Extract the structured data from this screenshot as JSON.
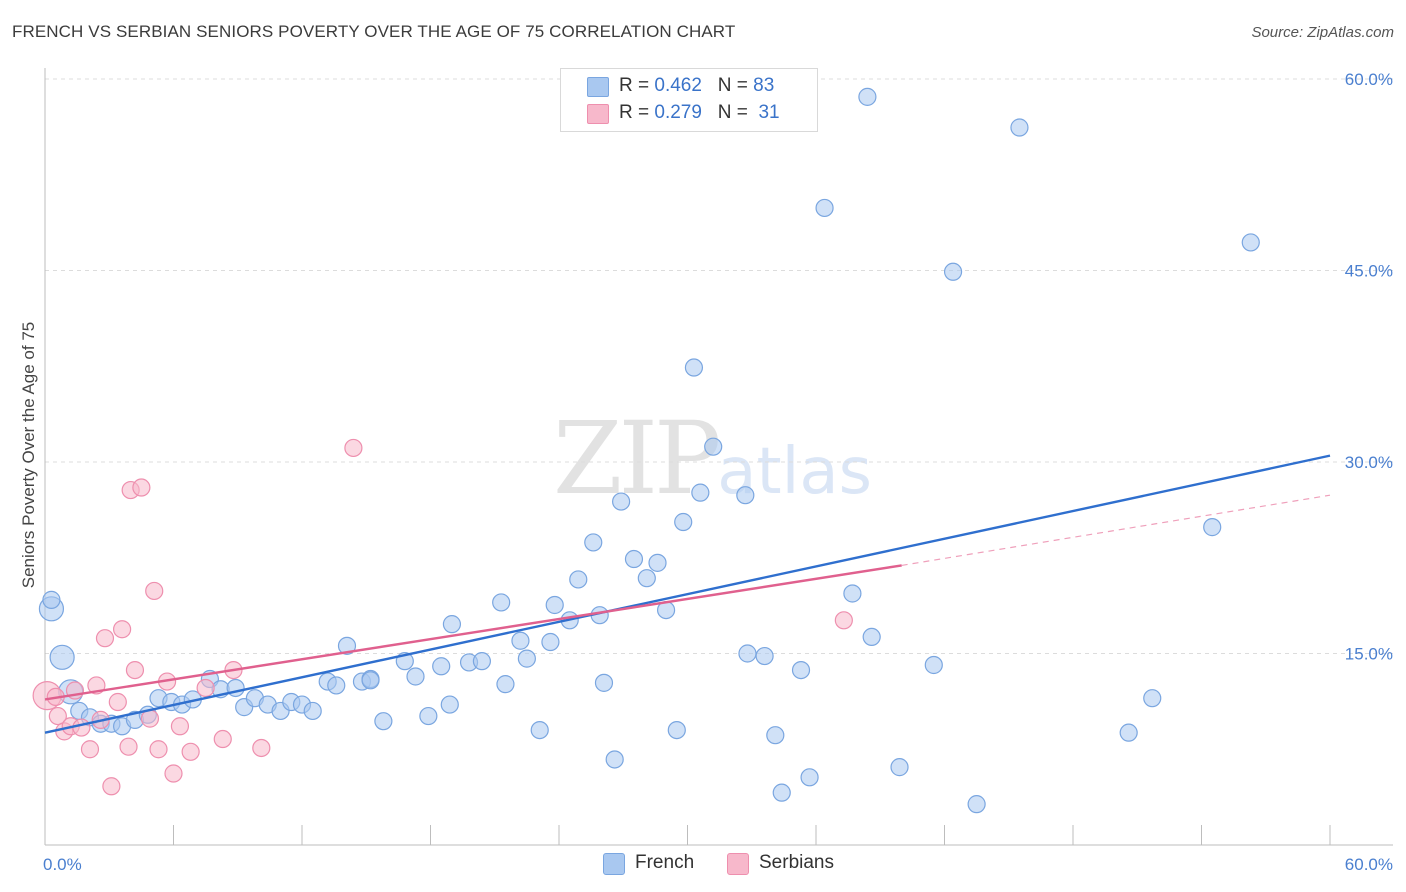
{
  "header": {
    "title": "FRENCH VS SERBIAN SENIORS POVERTY OVER THE AGE OF 75 CORRELATION CHART",
    "source": "Source: ZipAtlas.com"
  },
  "watermark": {
    "zip": "ZIP",
    "atlas": "atlas"
  },
  "legend": {
    "rows": [
      {
        "r_label": "R =",
        "r_value": "0.462",
        "n_label": "N =",
        "n_value": "83",
        "color": "#a9c8f0"
      },
      {
        "r_label": "R =",
        "r_value": "0.279",
        "n_label": "N =",
        "n_value": "31",
        "color": "#f7b8cb"
      }
    ]
  },
  "bottom_legend": [
    {
      "label": "French",
      "color": "#a9c8f0"
    },
    {
      "label": "Serbians",
      "color": "#f7b8cb"
    }
  ],
  "chart_data": {
    "type": "scatter",
    "title": "FRENCH VS SERBIAN SENIORS POVERTY OVER THE AGE OF 75 CORRELATION CHART",
    "xlabel": "",
    "ylabel": "Seniors Poverty Over the Age of 75",
    "xlim": [
      0,
      60
    ],
    "ylim": [
      0,
      60
    ],
    "x_tick_labels": [
      "0.0%",
      "60.0%"
    ],
    "y_ticks": [
      15,
      30,
      45,
      60
    ],
    "y_tick_labels": [
      "15.0%",
      "30.0%",
      "45.0%",
      "60.0%"
    ],
    "grid": "horizontal-dashed",
    "legend_position": "top-center",
    "series": [
      {
        "name": "French",
        "color": "#a9c8f0",
        "stroke": "#7aa6e0",
        "trend": {
          "x": [
            0,
            60
          ],
          "y": [
            8.8,
            30.5
          ],
          "color": "#2f6fce"
        },
        "points": [
          [
            0.3,
            18.5
          ],
          [
            0.8,
            14.7
          ],
          [
            1.2,
            12.0
          ],
          [
            1.6,
            10.5
          ],
          [
            2.1,
            10.0
          ],
          [
            2.6,
            9.5
          ],
          [
            3.1,
            9.5
          ],
          [
            3.6,
            9.3
          ],
          [
            4.2,
            9.8
          ],
          [
            4.8,
            10.2
          ],
          [
            5.3,
            11.5
          ],
          [
            5.9,
            11.2
          ],
          [
            6.4,
            11.0
          ],
          [
            6.9,
            11.4
          ],
          [
            7.7,
            13.0
          ],
          [
            8.2,
            12.2
          ],
          [
            8.9,
            12.3
          ],
          [
            9.3,
            10.8
          ],
          [
            9.8,
            11.5
          ],
          [
            10.4,
            11.0
          ],
          [
            11.0,
            10.5
          ],
          [
            11.5,
            11.2
          ],
          [
            12.0,
            11.0
          ],
          [
            12.5,
            10.5
          ],
          [
            13.2,
            12.8
          ],
          [
            13.6,
            12.5
          ],
          [
            14.1,
            15.6
          ],
          [
            14.8,
            12.8
          ],
          [
            15.2,
            13.0
          ],
          [
            15.2,
            12.9
          ],
          [
            15.8,
            9.7
          ],
          [
            16.8,
            14.4
          ],
          [
            17.3,
            13.2
          ],
          [
            17.9,
            10.1
          ],
          [
            18.5,
            14.0
          ],
          [
            18.9,
            11.0
          ],
          [
            19.0,
            17.3
          ],
          [
            19.8,
            14.3
          ],
          [
            20.4,
            14.4
          ],
          [
            21.3,
            19.0
          ],
          [
            21.5,
            12.6
          ],
          [
            22.2,
            16.0
          ],
          [
            22.5,
            14.6
          ],
          [
            23.1,
            9.0
          ],
          [
            23.6,
            15.9
          ],
          [
            23.8,
            18.8
          ],
          [
            24.5,
            17.6
          ],
          [
            24.9,
            20.8
          ],
          [
            25.6,
            23.7
          ],
          [
            25.9,
            18.0
          ],
          [
            26.1,
            12.7
          ],
          [
            26.6,
            6.7
          ],
          [
            26.9,
            26.9
          ],
          [
            27.5,
            22.4
          ],
          [
            28.1,
            20.9
          ],
          [
            28.6,
            22.1
          ],
          [
            29.0,
            18.4
          ],
          [
            29.5,
            9.0
          ],
          [
            29.8,
            25.3
          ],
          [
            30.3,
            37.4
          ],
          [
            30.6,
            27.6
          ],
          [
            31.2,
            31.2
          ],
          [
            32.7,
            27.4
          ],
          [
            32.8,
            15.0
          ],
          [
            33.6,
            14.8
          ],
          [
            34.1,
            8.6
          ],
          [
            34.4,
            4.1
          ],
          [
            35.3,
            13.7
          ],
          [
            35.7,
            5.3
          ],
          [
            36.4,
            49.9
          ],
          [
            37.7,
            19.7
          ],
          [
            38.4,
            58.6
          ],
          [
            38.6,
            16.3
          ],
          [
            39.9,
            6.1
          ],
          [
            41.5,
            14.1
          ],
          [
            42.4,
            44.9
          ],
          [
            43.5,
            3.2
          ],
          [
            45.5,
            56.2
          ],
          [
            50.6,
            8.8
          ],
          [
            51.7,
            11.5
          ],
          [
            54.5,
            24.9
          ],
          [
            56.3,
            47.2
          ],
          [
            0.3,
            19.2
          ]
        ]
      },
      {
        "name": "Serbians",
        "color": "#f7b8cb",
        "stroke": "#ee8fae",
        "trend": {
          "x": [
            0,
            40
          ],
          "y": [
            11.4,
            21.9
          ],
          "color": "#e0608e"
        },
        "trend_extension": {
          "x": [
            40,
            60
          ],
          "y": [
            21.9,
            27.4
          ],
          "color": "#efa0bb"
        },
        "points": [
          [
            0.1,
            11.7
          ],
          [
            0.5,
            11.6
          ],
          [
            0.6,
            10.1
          ],
          [
            0.9,
            8.9
          ],
          [
            1.2,
            9.3
          ],
          [
            1.4,
            12.1
          ],
          [
            1.7,
            9.2
          ],
          [
            2.1,
            7.5
          ],
          [
            2.4,
            12.5
          ],
          [
            2.6,
            9.8
          ],
          [
            2.8,
            16.2
          ],
          [
            3.1,
            4.6
          ],
          [
            3.4,
            11.2
          ],
          [
            3.6,
            16.9
          ],
          [
            3.9,
            7.7
          ],
          [
            4.0,
            27.8
          ],
          [
            4.2,
            13.7
          ],
          [
            4.5,
            28.0
          ],
          [
            4.9,
            9.9
          ],
          [
            5.1,
            19.9
          ],
          [
            5.3,
            7.5
          ],
          [
            5.7,
            12.8
          ],
          [
            6.0,
            5.6
          ],
          [
            6.3,
            9.3
          ],
          [
            6.8,
            7.3
          ],
          [
            7.5,
            12.3
          ],
          [
            8.3,
            8.3
          ],
          [
            8.8,
            13.7
          ],
          [
            10.1,
            7.6
          ],
          [
            14.4,
            31.1
          ],
          [
            37.3,
            17.6
          ]
        ]
      }
    ]
  }
}
